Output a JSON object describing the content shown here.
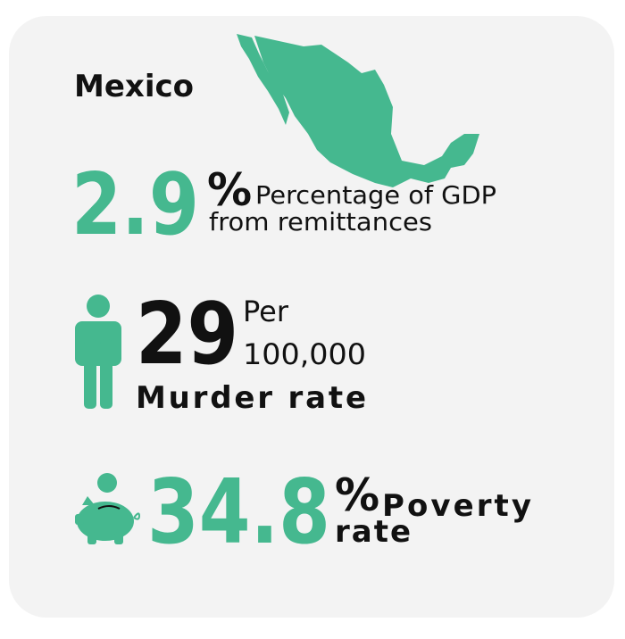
{
  "country": "Mexico",
  "remittances": {
    "value": "2.9",
    "unit": "%",
    "label_line1": "Percentage of GDP",
    "label_line2": "from remittances"
  },
  "murder": {
    "value": "29",
    "unit_line1": "Per",
    "unit_line2": "100,000",
    "label": "Murder rate"
  },
  "poverty": {
    "value": "34.8",
    "unit": "%",
    "label_line1": "Poverty",
    "label_line2": "rate"
  }
}
